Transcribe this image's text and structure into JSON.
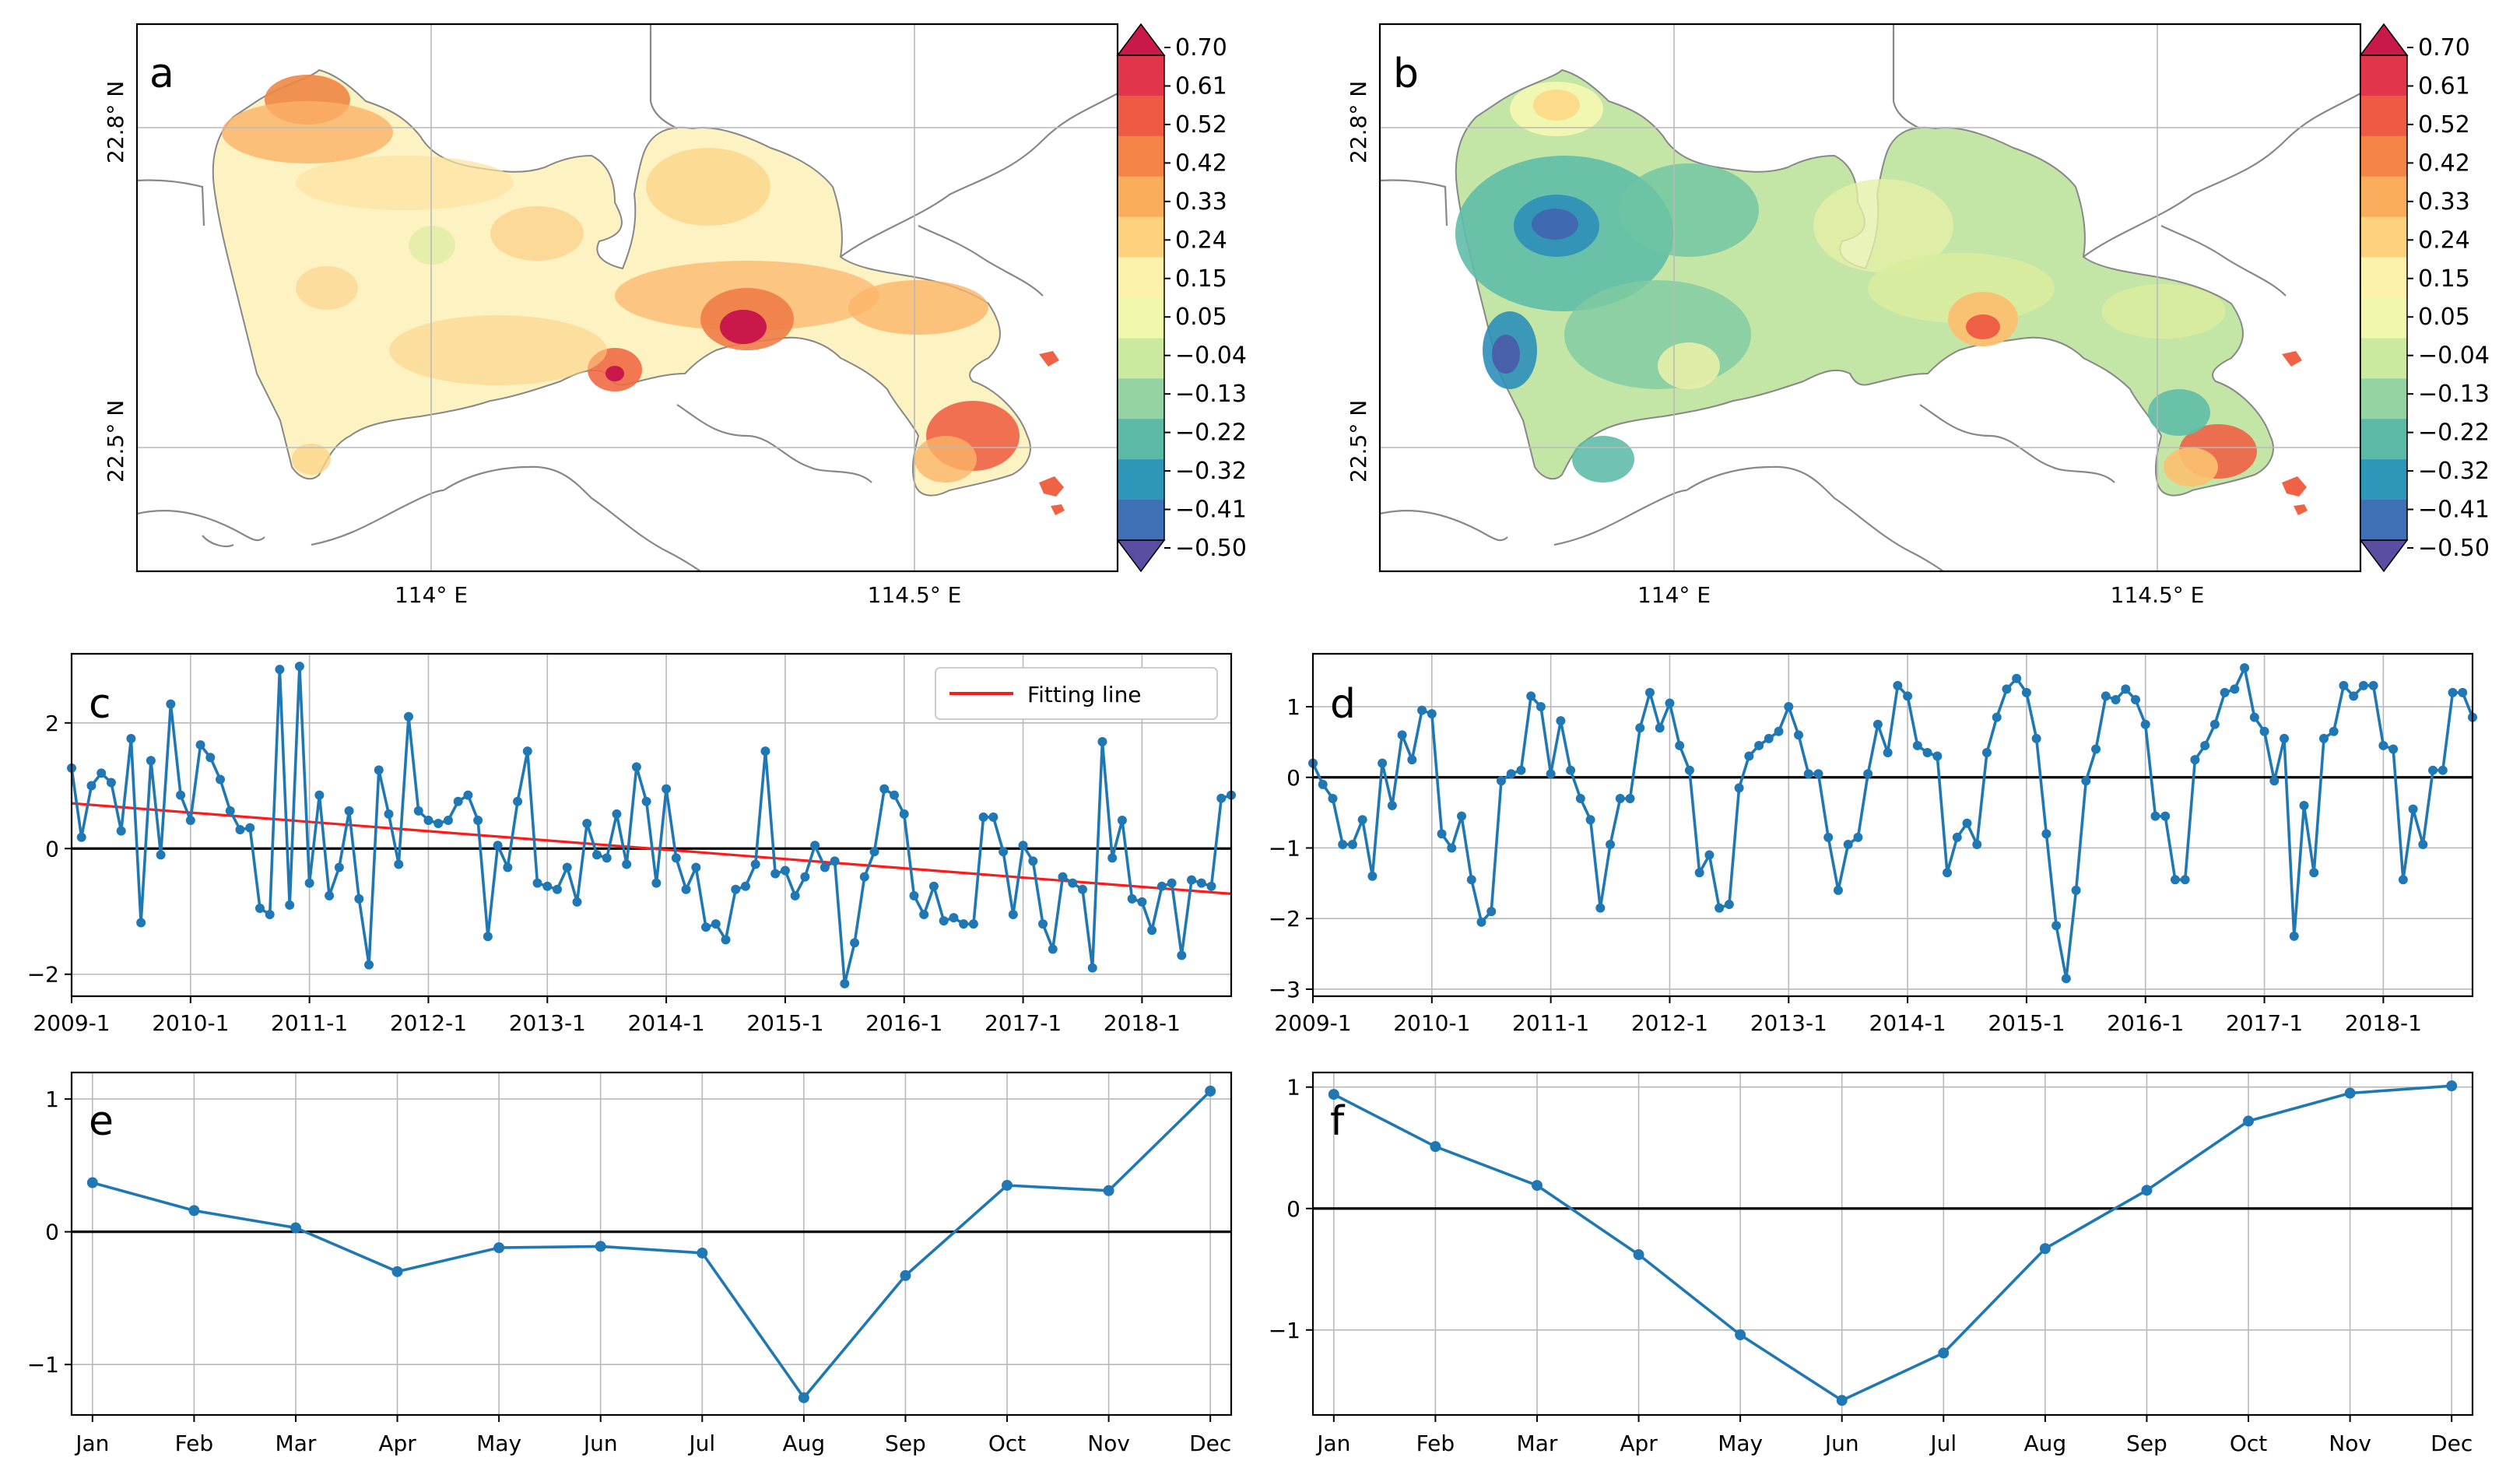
{
  "chart_data": [
    {
      "id": "a",
      "type": "heatmap",
      "panel_label": "a",
      "description_type": "map",
      "lat_ticks": [
        "22.8° N",
        "22.5° N"
      ],
      "lon_ticks": [
        "114° E",
        "114.5° E"
      ],
      "colorbar": {
        "ticks": [
          "0.70",
          "0.61",
          "0.52",
          "0.42",
          "0.33",
          "0.24",
          "0.15",
          "0.05",
          "−0.04",
          "−0.13",
          "−0.22",
          "−0.32",
          "−0.41",
          "−0.50"
        ],
        "colors": [
          "#c8194a",
          "#e0354a",
          "#ee5a43",
          "#f58447",
          "#fbad5e",
          "#fdd17e",
          "#fdf2ab",
          "#f1f8ad",
          "#cbe99f",
          "#95d4a2",
          "#5bb9a6",
          "#2e96b8",
          "#3f6fb5",
          "#5a4ea2"
        ]
      }
    },
    {
      "id": "b",
      "type": "heatmap",
      "panel_label": "b",
      "lat_ticks": [
        "22.8° N",
        "22.5° N"
      ],
      "lon_ticks": [
        "114° E",
        "114.5° E"
      ],
      "colorbar": {
        "ticks": [
          "0.70",
          "0.61",
          "0.52",
          "0.42",
          "0.33",
          "0.24",
          "0.15",
          "0.05",
          "−0.04",
          "−0.13",
          "−0.22",
          "−0.32",
          "−0.41",
          "−0.50"
        ]
      }
    },
    {
      "id": "c",
      "type": "line",
      "panel_label": "c",
      "x_tick_labels": [
        "2009-1",
        "2010-1",
        "2011-1",
        "2012-1",
        "2013-1",
        "2014-1",
        "2015-1",
        "2016-1",
        "2017-1",
        "2018-1"
      ],
      "y_ticks": [
        2,
        0,
        -2
      ],
      "y_tick_labels": [
        "2",
        "0",
        "−2"
      ],
      "ylim": [
        -2.35,
        3.1
      ],
      "legend": {
        "label": "Fitting line",
        "position": "top-right"
      },
      "fit_line": {
        "start": 0.72,
        "end": -0.72
      },
      "series_color": "#1f77b4",
      "values": [
        1.28,
        0.18,
        1.0,
        1.2,
        1.05,
        0.28,
        1.75,
        -1.18,
        1.4,
        -0.1,
        2.3,
        0.85,
        0.45,
        1.65,
        1.45,
        1.1,
        0.6,
        0.3,
        0.33,
        -0.95,
        -1.05,
        2.85,
        -0.9,
        2.9,
        -0.55,
        0.85,
        -0.75,
        -0.3,
        0.6,
        -0.8,
        -1.85,
        1.25,
        0.55,
        -0.25,
        2.1,
        0.6,
        0.45,
        0.4,
        0.45,
        0.75,
        0.85,
        0.45,
        -1.4,
        0.05,
        -0.3,
        0.75,
        1.55,
        -0.55,
        -0.6,
        -0.65,
        -0.3,
        -0.85,
        0.4,
        -0.1,
        -0.15,
        0.55,
        -0.25,
        1.3,
        0.75,
        -0.55,
        0.95,
        -0.15,
        -0.65,
        -0.3,
        -1.25,
        -1.2,
        -1.45,
        -0.65,
        -0.6,
        -0.25,
        1.55,
        -0.4,
        -0.35,
        -0.75,
        -0.45,
        0.05,
        -0.3,
        -0.2,
        -2.15,
        -1.5,
        -0.45,
        -0.05,
        0.95,
        0.85,
        0.55,
        -0.75,
        -1.05,
        -0.6,
        -1.15,
        -1.1,
        -1.2,
        -1.2,
        0.5,
        0.5,
        -0.05,
        -1.05,
        0.05,
        -0.2,
        -1.2,
        -1.6,
        -0.45,
        -0.55,
        -0.65,
        -1.9,
        1.7,
        -0.15,
        0.45,
        -0.8,
        -0.85,
        -1.3,
        -0.6,
        -0.55,
        -1.7,
        -0.5,
        -0.55,
        -0.6,
        0.8,
        0.85
      ]
    },
    {
      "id": "d",
      "type": "line",
      "panel_label": "d",
      "x_tick_labels": [
        "2009-1",
        "2010-1",
        "2011-1",
        "2012-1",
        "2013-1",
        "2014-1",
        "2015-1",
        "2016-1",
        "2017-1",
        "2018-1"
      ],
      "y_ticks": [
        1,
        0,
        -1,
        -2,
        -3
      ],
      "y_tick_labels": [
        "1",
        "0",
        "−1",
        "−2",
        "−3"
      ],
      "ylim": [
        -3.1,
        1.75
      ],
      "series_color": "#1f77b4",
      "values": [
        0.2,
        -0.1,
        -0.3,
        -0.95,
        -0.95,
        -0.6,
        -1.4,
        0.2,
        -0.4,
        0.6,
        0.25,
        0.95,
        0.9,
        -0.8,
        -1.0,
        -0.55,
        -1.45,
        -2.05,
        -1.9,
        -0.05,
        0.05,
        0.1,
        1.15,
        1.0,
        0.05,
        0.8,
        0.1,
        -0.3,
        -0.6,
        -1.85,
        -0.95,
        -0.3,
        -0.3,
        0.7,
        1.2,
        0.7,
        1.05,
        0.45,
        0.1,
        -1.35,
        -1.1,
        -1.85,
        -1.8,
        -0.15,
        0.3,
        0.45,
        0.55,
        0.65,
        1.0,
        0.6,
        0.05,
        0.05,
        -0.85,
        -1.6,
        -0.95,
        -0.85,
        0.05,
        0.75,
        0.35,
        1.3,
        1.15,
        0.45,
        0.35,
        0.3,
        -1.35,
        -0.85,
        -0.65,
        -0.95,
        0.35,
        0.85,
        1.25,
        1.4,
        1.2,
        0.55,
        -0.8,
        -2.1,
        -2.85,
        -1.6,
        -0.05,
        0.4,
        1.15,
        1.1,
        1.25,
        1.1,
        0.75,
        -0.55,
        -0.55,
        -1.45,
        -1.45,
        0.25,
        0.45,
        0.75,
        1.2,
        1.25,
        1.55,
        0.85,
        0.65,
        -0.05,
        0.55,
        -2.25,
        -0.4,
        -1.35,
        0.55,
        0.65,
        1.3,
        1.15,
        1.3,
        1.3,
        0.45,
        0.4,
        -1.45,
        -0.45,
        -0.95,
        0.1,
        0.1,
        1.2,
        1.2,
        0.85
      ]
    },
    {
      "id": "e",
      "type": "line",
      "panel_label": "e",
      "categories": [
        "Jan",
        "Feb",
        "Mar",
        "Apr",
        "May",
        "Jun",
        "Jul",
        "Aug",
        "Sep",
        "Oct",
        "Nov",
        "Dec"
      ],
      "y_ticks": [
        1,
        0,
        -1
      ],
      "y_tick_labels": [
        "1",
        "0",
        "−1"
      ],
      "ylim": [
        -1.38,
        1.2
      ],
      "series_color": "#1f77b4",
      "values": [
        0.37,
        0.16,
        0.03,
        -0.3,
        -0.12,
        -0.11,
        -0.16,
        -1.25,
        -0.33,
        0.35,
        0.31,
        1.06
      ]
    },
    {
      "id": "f",
      "type": "line",
      "panel_label": "f",
      "categories": [
        "Jan",
        "Feb",
        "Mar",
        "Apr",
        "May",
        "Jun",
        "Jul",
        "Aug",
        "Sep",
        "Oct",
        "Nov",
        "Dec"
      ],
      "y_ticks": [
        1,
        0,
        -1
      ],
      "y_tick_labels": [
        "1",
        "0",
        "−1"
      ],
      "ylim": [
        -1.7,
        1.12
      ],
      "series_color": "#1f77b4",
      "values": [
        0.94,
        0.51,
        0.19,
        -0.38,
        -1.04,
        -1.58,
        -1.19,
        -0.33,
        0.15,
        0.72,
        0.95,
        1.01
      ]
    }
  ]
}
